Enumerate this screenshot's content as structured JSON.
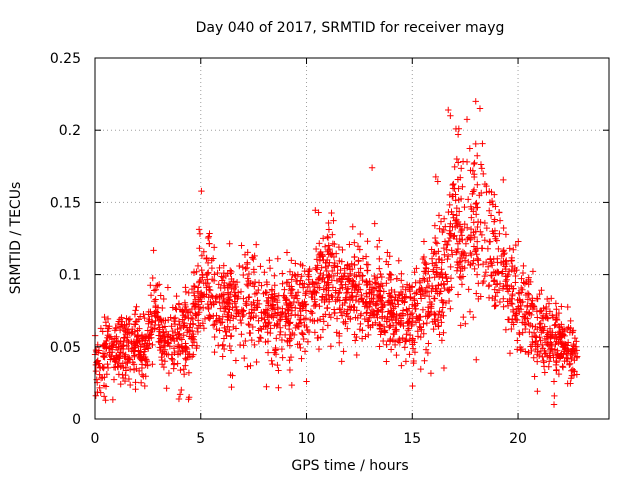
{
  "chart_data": {
    "type": "scatter",
    "title": "Day 040 of 2017, SRMTID for receiver mayg",
    "xlabel": "GPS time / hours",
    "ylabel": "SRMTID / TECUs",
    "xlim": [
      0,
      24.3
    ],
    "ylim": [
      0,
      0.25
    ],
    "x_ticks": [
      0,
      5,
      10,
      15,
      20
    ],
    "x_tick_labels": [
      "0",
      "5",
      "10",
      "15",
      "20"
    ],
    "y_ticks": [
      0,
      0.05,
      0.1,
      0.15,
      0.2,
      0.25
    ],
    "y_tick_labels": [
      "0",
      "0.05",
      "0.1",
      "0.15",
      "0.2",
      "0.25"
    ],
    "grid": true,
    "marker": "plus",
    "marker_color": "#ff0000",
    "series": [
      {
        "name": "SRMTID",
        "x_range": [
          0,
          22.8
        ],
        "sample_count": 2400,
        "trend": {
          "x": [
            0,
            0.5,
            1,
            1.5,
            2,
            2.5,
            2.8,
            3.2,
            4,
            4.6,
            5,
            5.5,
            6,
            7,
            8,
            8.5,
            9,
            10,
            10.5,
            11,
            11.5,
            12,
            12.5,
            13,
            14,
            15,
            15.5,
            16,
            16.5,
            17,
            17.5,
            18,
            18.5,
            19,
            19.5,
            20,
            20.5,
            21,
            21.5,
            22,
            22.8
          ],
          "y": [
            0.035,
            0.045,
            0.048,
            0.05,
            0.052,
            0.05,
            0.08,
            0.055,
            0.058,
            0.065,
            0.09,
            0.085,
            0.08,
            0.078,
            0.072,
            0.068,
            0.075,
            0.08,
            0.09,
            0.1,
            0.085,
            0.09,
            0.088,
            0.085,
            0.075,
            0.072,
            0.085,
            0.09,
            0.1,
            0.14,
            0.12,
            0.13,
            0.12,
            0.11,
            0.095,
            0.08,
            0.07,
            0.065,
            0.055,
            0.052,
            0.045
          ]
        },
        "spread": {
          "x": [
            0,
            3,
            5,
            10,
            15,
            16,
            18,
            19,
            20,
            22.8
          ],
          "y": [
            0.012,
            0.013,
            0.018,
            0.018,
            0.016,
            0.024,
            0.03,
            0.025,
            0.017,
            0.01
          ]
        },
        "notable_points": [
          {
            "x": 18.0,
            "y": 0.22
          },
          {
            "x": 18.2,
            "y": 0.215
          },
          {
            "x": 16.7,
            "y": 0.214
          },
          {
            "x": 16.8,
            "y": 0.21
          },
          {
            "x": 17.2,
            "y": 0.201
          },
          {
            "x": 13.1,
            "y": 0.174
          },
          {
            "x": 0.5,
            "y": 0.013
          },
          {
            "x": 10.0,
            "y": 0.026
          },
          {
            "x": 6.5,
            "y": 0.03
          },
          {
            "x": 21.7,
            "y": 0.026
          }
        ]
      }
    ]
  }
}
